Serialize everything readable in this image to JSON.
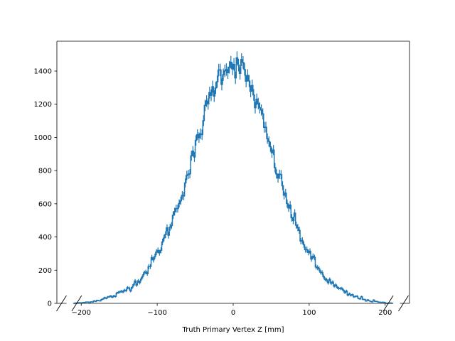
{
  "chart_data": {
    "type": "histogram",
    "title": "",
    "xlabel": "Truth Primary Vertex Z [mm]",
    "ylabel": "",
    "xlim": [
      -232,
      232
    ],
    "ylim": [
      0,
      1580
    ],
    "xticks": [
      -200,
      -100,
      0,
      100,
      200
    ],
    "xtick_labels": [
      "−200",
      "−100",
      "0",
      "100",
      "200"
    ],
    "yticks": [
      0,
      200,
      400,
      600,
      800,
      1000,
      1200,
      1400
    ],
    "ytick_labels": [
      "0",
      "200",
      "400",
      "600",
      "800",
      "1000",
      "1200",
      "1400"
    ],
    "bin_range": [
      -210,
      210
    ],
    "bin_width": 2,
    "gaussian_mean": 0,
    "gaussian_sigma": 52,
    "peak_counts": 1440,
    "color": "#1f77b4",
    "grid": false,
    "axis_break_marks": true,
    "profile": [
      [
        -210,
        0
      ],
      [
        -200,
        3
      ],
      [
        -190,
        8
      ],
      [
        -180,
        16
      ],
      [
        -170,
        28
      ],
      [
        -160,
        40
      ],
      [
        -150,
        58
      ],
      [
        -140,
        85
      ],
      [
        -130,
        118
      ],
      [
        -120,
        160
      ],
      [
        -110,
        220
      ],
      [
        -100,
        300
      ],
      [
        -90,
        390
      ],
      [
        -80,
        500
      ],
      [
        -70,
        630
      ],
      [
        -60,
        770
      ],
      [
        -50,
        920
      ],
      [
        -40,
        1090
      ],
      [
        -30,
        1250
      ],
      [
        -20,
        1360
      ],
      [
        -10,
        1430
      ],
      [
        0,
        1445
      ],
      [
        10,
        1420
      ],
      [
        20,
        1340
      ],
      [
        30,
        1220
      ],
      [
        40,
        1080
      ],
      [
        50,
        920
      ],
      [
        60,
        770
      ],
      [
        70,
        630
      ],
      [
        80,
        500
      ],
      [
        90,
        390
      ],
      [
        100,
        300
      ],
      [
        110,
        220
      ],
      [
        120,
        160
      ],
      [
        130,
        118
      ],
      [
        140,
        85
      ],
      [
        150,
        58
      ],
      [
        160,
        40
      ],
      [
        170,
        28
      ],
      [
        180,
        16
      ],
      [
        190,
        8
      ],
      [
        200,
        3
      ],
      [
        210,
        0
      ]
    ]
  }
}
